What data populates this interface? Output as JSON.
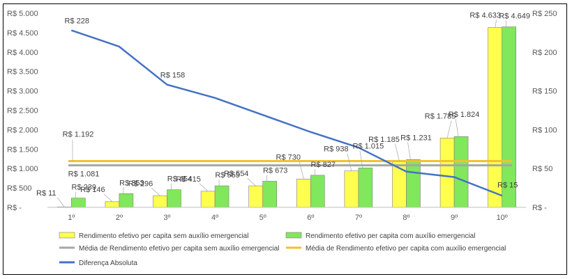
{
  "chart_data": {
    "type": "bar",
    "categories": [
      "1º",
      "2º",
      "3º",
      "4º",
      "5º",
      "6º",
      "7º",
      "8º",
      "9º",
      "10º"
    ],
    "series": [
      {
        "name": "Rendimento efetivo per capita sem auxílio emergencial",
        "kind": "bar",
        "color": "#FFFF4D",
        "values": [
          11,
          146,
          296,
          415,
          554,
          730,
          938,
          1185,
          1785,
          4633
        ],
        "labels": [
          "R$ 11",
          "R$ 146",
          "R$ 296",
          "R$ 415",
          "R$ 554",
          "R$ 730",
          "R$ 938",
          "R$ 1.185",
          "R$ 1.785",
          "R$ 4.633"
        ]
      },
      {
        "name": "Rendimento efetivo per capita com auxílio emergencial",
        "kind": "bar",
        "color": "#80E85A",
        "values": [
          239,
          353,
          454,
          555,
          673,
          827,
          1015,
          1231,
          1824,
          4649
        ],
        "labels": [
          "R$ 239",
          "R$ 353",
          "R$ 454",
          "R$ 555",
          "R$ 673",
          "R$ 827",
          "R$ 1.015",
          "R$ 1.231",
          "R$ 1.824",
          "R$ 4.649"
        ]
      },
      {
        "name": "Média de Rendimento efetivo per capita sem auxílio emergencial",
        "kind": "hline",
        "color": "#A6A6A6",
        "value": 1081,
        "label": "R$ 1.081"
      },
      {
        "name": "Média de Rendimento efetivo per capita com auxílio emergencial",
        "kind": "hline",
        "color": "#F2C12E",
        "value": 1192,
        "label": "R$ 1.192"
      },
      {
        "name": "Diferença Absoluta",
        "kind": "line",
        "axis": "right",
        "color": "#4472C4",
        "values": [
          228,
          207,
          158,
          141,
          119,
          97,
          77,
          46,
          39,
          15
        ],
        "labels": [
          "R$ 228",
          "",
          "R$ 158",
          "",
          "",
          "",
          "",
          "",
          "",
          "R$ 15"
        ]
      }
    ],
    "y_left": {
      "ylim": [
        0,
        5000
      ],
      "ticks": [
        0,
        500,
        1000,
        1500,
        2000,
        2500,
        3000,
        3500,
        4000,
        4500,
        5000
      ],
      "tick_labels": [
        "R$ -",
        "R$ 500",
        "R$ 1.000",
        "R$ 1.500",
        "R$ 2.000",
        "R$ 2.500",
        "R$ 3.000",
        "R$ 3.500",
        "R$ 4.000",
        "R$ 4.500",
        "R$ 5.000"
      ]
    },
    "y_right": {
      "ylim": [
        0,
        250
      ],
      "ticks": [
        0,
        50,
        100,
        150,
        200,
        250
      ],
      "tick_labels": [
        "R$ -",
        "R$ 50",
        "R$ 100",
        "R$ 150",
        "R$ 200",
        "R$ 250"
      ]
    },
    "grid": false,
    "legend_position": "bottom"
  }
}
